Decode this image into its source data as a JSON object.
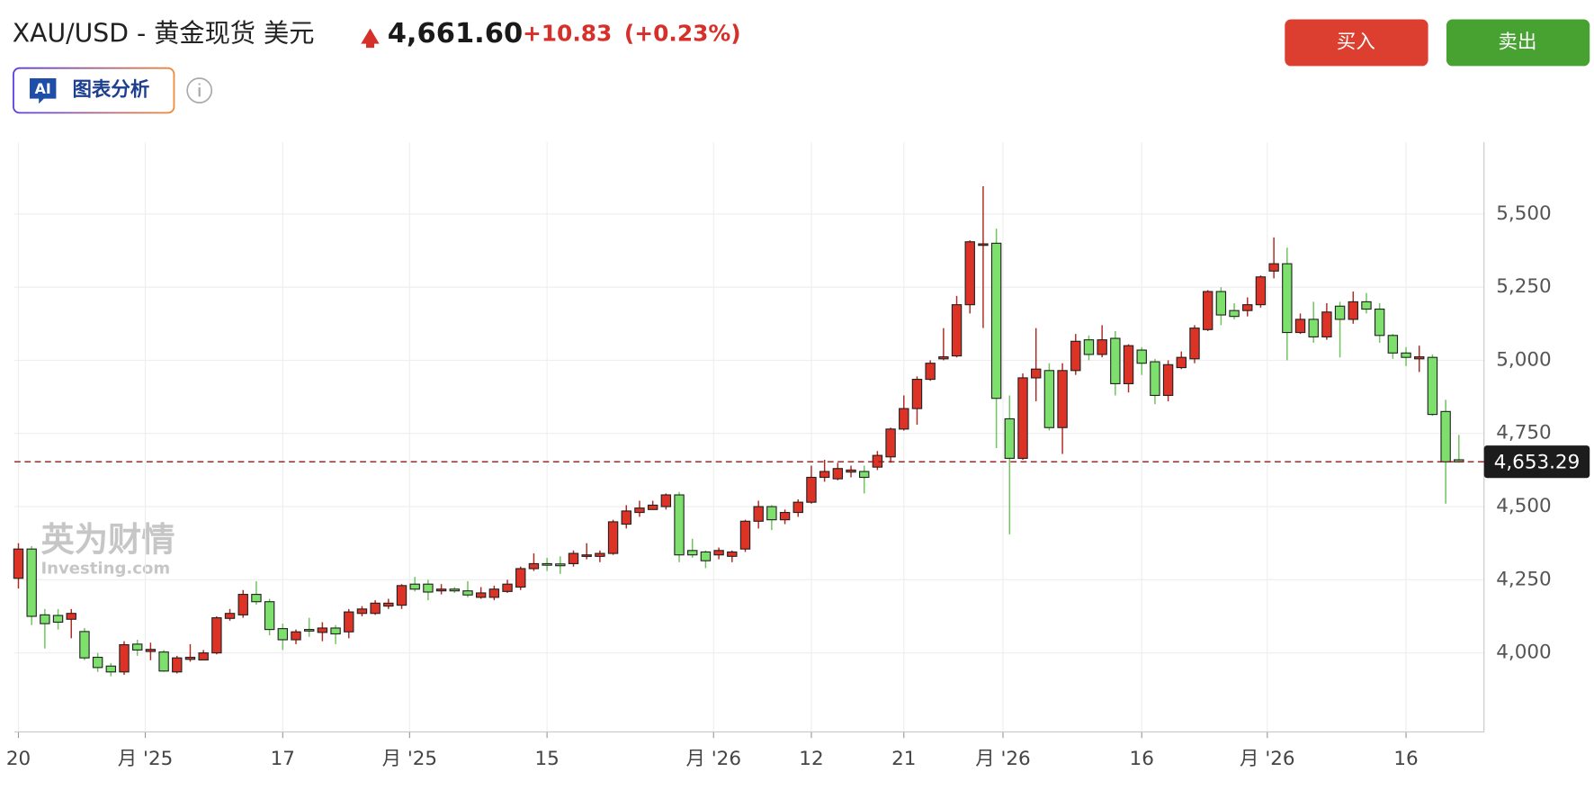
{
  "header": {
    "title": "XAU/USD - 黄金现货 美元",
    "price": "4,661.60",
    "change": "+10.83",
    "change_pct": "(+0.23%)",
    "buy": "买入",
    "sell": "卖出",
    "ai_badge": "AI",
    "ai_button": "图表分析",
    "watermark": "英为财情",
    "watermark_sub": "Investing.com"
  },
  "chart_data": {
    "type": "candlestick",
    "up_color": "#dd3327",
    "down_color": "#7ee06c",
    "grid": true,
    "open": [
      4255,
      4355,
      4130,
      4128,
      4115,
      4073,
      3985,
      3955,
      3935,
      4030,
      4005,
      4003,
      3935,
      3978,
      3976,
      4000,
      4118,
      4130,
      4200,
      4175,
      4083,
      4045,
      4080,
      4070,
      4085,
      4072,
      4135,
      4135,
      4160,
      4163,
      4235,
      4235,
      4212,
      4218,
      4212,
      4190,
      4190,
      4210,
      4225,
      4288,
      4305,
      4304,
      4305,
      4330,
      4330,
      4340,
      4440,
      4480,
      4490,
      4500,
      4540,
      4350,
      4345,
      4335,
      4330,
      4355,
      4450,
      4500,
      4455,
      4480,
      4515,
      4600,
      4595,
      4618,
      4620,
      4635,
      4670,
      4765,
      4835,
      4935,
      5005,
      5015,
      5190,
      5395,
      5400,
      4800,
      4665,
      4940,
      4965,
      4770,
      4965,
      5070,
      5020,
      5075,
      4920,
      5035,
      4995,
      4880,
      4975,
      5005,
      5105,
      5235,
      5170,
      5170,
      5190,
      5305,
      5330,
      5095,
      5140,
      5080,
      5185,
      5140,
      5200,
      5175,
      5085,
      5025,
      5005,
      5010,
      4825,
      4660
    ],
    "high": [
      4375,
      4365,
      4150,
      4150,
      4150,
      4085,
      4000,
      3965,
      4040,
      4045,
      4035,
      4010,
      3990,
      4030,
      4010,
      4125,
      4150,
      4215,
      4245,
      4185,
      4100,
      4080,
      4120,
      4105,
      4095,
      4150,
      4160,
      4180,
      4185,
      4235,
      4260,
      4250,
      4235,
      4225,
      4245,
      4225,
      4230,
      4250,
      4295,
      4340,
      4325,
      4330,
      4350,
      4375,
      4350,
      4455,
      4505,
      4520,
      4520,
      4545,
      4550,
      4390,
      4350,
      4360,
      4350,
      4455,
      4520,
      4505,
      4490,
      4525,
      4640,
      4660,
      4650,
      4640,
      4640,
      4690,
      4770,
      4880,
      4945,
      5000,
      5110,
      5220,
      5410,
      5595,
      5450,
      4880,
      4955,
      5110,
      4990,
      4990,
      5090,
      5085,
      5120,
      5100,
      5055,
      5045,
      5005,
      5000,
      5030,
      5120,
      5240,
      5250,
      5195,
      5215,
      5290,
      5420,
      5385,
      5160,
      5200,
      5195,
      5200,
      5235,
      5230,
      5195,
      5090,
      5045,
      5050,
      5020,
      4865,
      4745
    ],
    "low": [
      4220,
      4095,
      4015,
      4080,
      4050,
      3975,
      3935,
      3920,
      3925,
      3990,
      3975,
      3935,
      3930,
      3970,
      3975,
      3995,
      4110,
      4120,
      4165,
      4060,
      4010,
      4030,
      4055,
      4040,
      4030,
      4050,
      4125,
      4130,
      4150,
      4150,
      4210,
      4180,
      4200,
      4205,
      4190,
      4185,
      4180,
      4205,
      4215,
      4280,
      4280,
      4270,
      4295,
      4320,
      4310,
      4335,
      4425,
      4465,
      4490,
      4490,
      4310,
      4325,
      4290,
      4320,
      4310,
      4345,
      4425,
      4420,
      4440,
      4465,
      4510,
      4585,
      4590,
      4600,
      4545,
      4625,
      4650,
      4760,
      4780,
      4930,
      5000,
      5010,
      5160,
      5110,
      4700,
      4405,
      4660,
      4860,
      4760,
      4680,
      4950,
      5000,
      5010,
      4880,
      4890,
      4950,
      4850,
      4860,
      4970,
      4990,
      5100,
      5120,
      5140,
      5150,
      5180,
      5280,
      5000,
      5090,
      5060,
      5070,
      5010,
      5125,
      5160,
      5060,
      5005,
      4980,
      4960,
      4810,
      4510,
      4650
    ],
    "close": [
      4355,
      4125,
      4100,
      4105,
      4135,
      3983,
      3950,
      3935,
      4028,
      4010,
      4012,
      3938,
      3983,
      3985,
      4000,
      4120,
      4135,
      4200,
      4175,
      4080,
      4045,
      4072,
      4075,
      4085,
      4065,
      4140,
      4150,
      4170,
      4170,
      4230,
      4218,
      4208,
      4218,
      4212,
      4198,
      4205,
      4218,
      4235,
      4288,
      4305,
      4300,
      4298,
      4340,
      4335,
      4340,
      4448,
      4485,
      4495,
      4505,
      4540,
      4335,
      4335,
      4315,
      4350,
      4345,
      4450,
      4500,
      4455,
      4480,
      4515,
      4600,
      4620,
      4630,
      4625,
      4600,
      4675,
      4765,
      4835,
      4935,
      4990,
      5012,
      5190,
      5405,
      5398,
      4870,
      4665,
      4940,
      4970,
      4770,
      4965,
      5065,
      5020,
      5070,
      4920,
      5050,
      4990,
      4880,
      4985,
      5010,
      5110,
      5235,
      5155,
      5150,
      5190,
      5285,
      5330,
      5095,
      5140,
      5080,
      5165,
      5140,
      5200,
      5175,
      5085,
      5025,
      5010,
      5012,
      4815,
      4653,
      4653
    ],
    "last_price": {
      "value": 4653.29,
      "label": "4,653.29"
    },
    "xlim": [
      -0.3,
      110.9
    ],
    "xticks": [
      {
        "value": 0,
        "label": "20"
      },
      {
        "value": 9.6,
        "label": "月 '25"
      },
      {
        "value": 20,
        "label": "17"
      },
      {
        "value": 29.6,
        "label": "月 '25"
      },
      {
        "value": 40,
        "label": "15"
      },
      {
        "value": 52.6,
        "label": "月 '26"
      },
      {
        "value": 60,
        "label": "12"
      },
      {
        "value": 67,
        "label": "21"
      },
      {
        "value": 74.5,
        "label": "月 '26"
      },
      {
        "value": 85,
        "label": "16"
      },
      {
        "value": 94.5,
        "label": "月 '26"
      },
      {
        "value": 105,
        "label": "16"
      }
    ],
    "ylim": [
      3730,
      5745
    ],
    "yticks": [
      {
        "value": 4000,
        "label": "4,000"
      },
      {
        "value": 4250,
        "label": "4,250"
      },
      {
        "value": 4500,
        "label": "4,500"
      },
      {
        "value": 4750,
        "label": "4,750"
      },
      {
        "value": 5000,
        "label": "5,000"
      },
      {
        "value": 5250,
        "label": "5,250"
      },
      {
        "value": 5500,
        "label": "5,500"
      }
    ]
  }
}
